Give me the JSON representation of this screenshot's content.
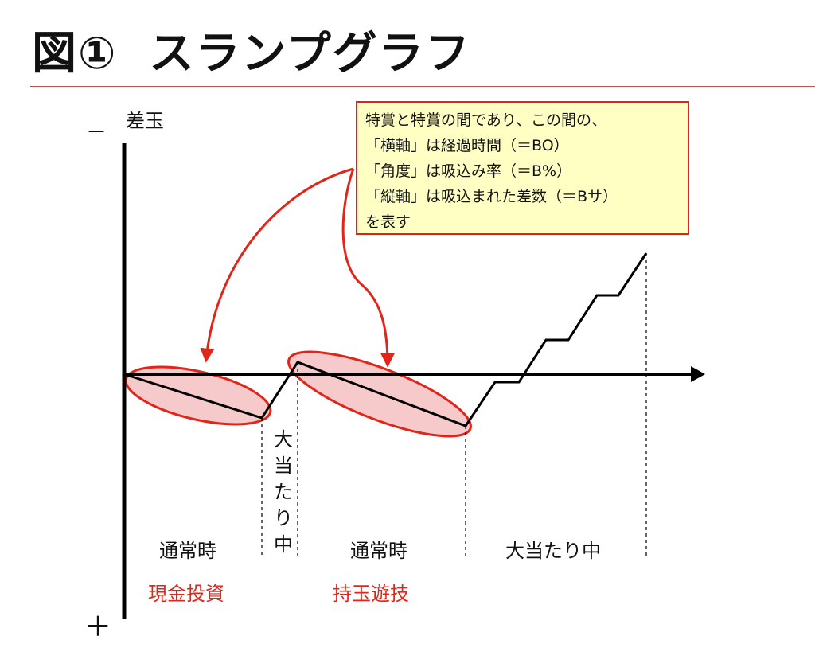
{
  "title": {
    "figure": "図①",
    "text": "スランプグラフ"
  },
  "axis": {
    "y_label": "差玉",
    "minus": "－",
    "plus": "＋"
  },
  "callout": {
    "lines": [
      "特賞と特賞の間であり、この間の、",
      "「横軸」は経過時間（＝BO）",
      "「角度」は吸込み率（＝B%）",
      "「縦軸」は吸込まれた差数（＝Bサ）",
      "を表す"
    ],
    "border_color": "#d9261c",
    "fill_color": "#ffffc4"
  },
  "phases": {
    "normal_1": "通常時",
    "jackpot_1": "大当たり中",
    "normal_2": "通常時",
    "jackpot_2": "大当たり中"
  },
  "annotations": {
    "cash_investment": "現金投資",
    "ball_play": "持玉遊技"
  },
  "colors": {
    "accent_red": "#e0261a",
    "ellipse_fill": "#f6c9ca",
    "line": "#000000"
  }
}
